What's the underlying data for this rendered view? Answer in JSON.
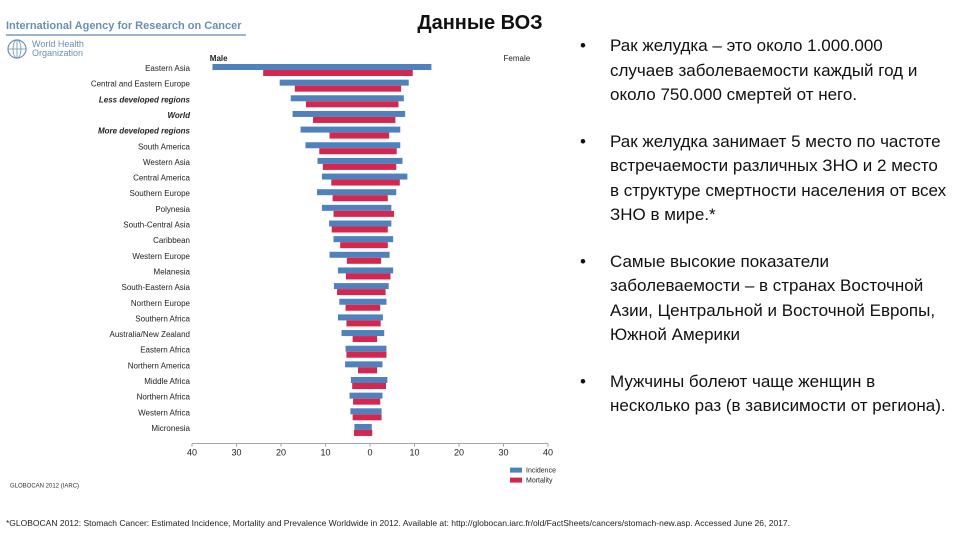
{
  "header": {
    "title": "Данные ВОЗ",
    "org_line": "International Agency for Research on Cancer",
    "who_line1": "World Health",
    "who_line2": "Organization"
  },
  "chart_data": {
    "type": "bar",
    "orientation": "horizontal-butterfly",
    "left_label": "Male",
    "right_label": "Female",
    "xlim": [
      -40,
      40
    ],
    "x_ticks": [
      -40,
      -30,
      -20,
      -10,
      0,
      10,
      20,
      30,
      40
    ],
    "x_tick_labels": [
      "40",
      "30",
      "20",
      "10",
      "0",
      "10",
      "20",
      "30",
      "40"
    ],
    "source_label": "GLOBOCAN 2012 (IARC)",
    "legend": [
      "Incidence",
      "Mortality"
    ],
    "colors": {
      "incidence": "#4f81bd",
      "mortality": "#d7264e"
    },
    "categories": [
      "Eastern Asia",
      "Central and Eastern Europe",
      "Less developed regions",
      "World",
      "More developed regions",
      "South America",
      "Western Asia",
      "Central America",
      "Southern Europe",
      "Polynesia",
      "South-Central Asia",
      "Caribbean",
      "Western Europe",
      "Melanesia",
      "South-Eastern Asia",
      "Northern Europe",
      "Southern Africa",
      "Australia/New Zealand",
      "Eastern Africa",
      "Northern America",
      "Middle Africa",
      "Northern Africa",
      "Western Africa",
      "Micronesia"
    ],
    "bold_italic_categories": [
      "Less developed regions",
      "World",
      "More developed regions"
    ],
    "series": [
      {
        "name": "Incidence",
        "side": "Male",
        "values": [
          35.4,
          20.3,
          17.8,
          17.4,
          15.6,
          14.5,
          11.8,
          10.8,
          11.9,
          10.8,
          9.2,
          8.2,
          9.1,
          7.2,
          8.1,
          6.9,
          7.2,
          6.4,
          5.5,
          5.6,
          4.3,
          4.6,
          4.4,
          3.5
        ]
      },
      {
        "name": "Mortality",
        "side": "Male",
        "values": [
          24.0,
          16.9,
          14.4,
          12.8,
          9.1,
          11.4,
          10.6,
          8.7,
          8.4,
          8.2,
          8.6,
          6.7,
          5.2,
          5.4,
          7.4,
          5.5,
          5.3,
          3.9,
          5.3,
          2.7,
          4.0,
          3.8,
          3.9,
          3.6
        ]
      },
      {
        "name": "Incidence",
        "side": "Female",
        "values": [
          13.8,
          8.7,
          7.6,
          7.9,
          6.8,
          6.8,
          7.3,
          8.4,
          5.9,
          4.8,
          4.8,
          5.2,
          4.4,
          5.2,
          4.2,
          3.7,
          2.9,
          3.2,
          3.7,
          2.8,
          3.9,
          2.8,
          2.6,
          0.4
        ]
      },
      {
        "name": "Mortality",
        "side": "Female",
        "values": [
          9.6,
          7.0,
          6.4,
          5.7,
          4.3,
          6.0,
          5.9,
          6.7,
          4.0,
          5.4,
          4.0,
          4.0,
          2.5,
          4.6,
          3.5,
          2.3,
          2.4,
          1.6,
          3.7,
          1.6,
          3.6,
          2.3,
          2.6,
          0.5
        ]
      }
    ]
  },
  "bullets": [
    "Рак желудка – это около 1.000.000 случаев заболеваемости каждый год и около 750.000 смертей от него.",
    "Рак желудка занимает 5 место по частоте встречаемости различных ЗНО и 2 место в структуре смертности населения от всех ЗНО в мире.*",
    "Самые высокие показатели заболеваемости – в странах Восточной Азии, Центральной и Восточной Европы, Южной Америки",
    "Мужчины болеют чаще женщин в несколько раз (в зависимости от региона)."
  ],
  "bullet_marker": "•",
  "footnote": "*GLOBOCAN 2012: Stomach Cancer: Estimated Incidence, Mortality and Prevalence Worldwide in 2012. Available at: http://globocan.iarc.fr/old/FactSheets/cancers/stomach-new.asp. Accessed June 26, 2017."
}
